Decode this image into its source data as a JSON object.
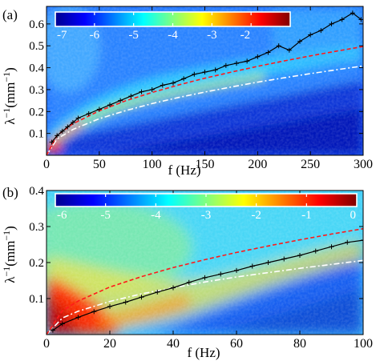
{
  "figure": {
    "panel_a_label": "(a)",
    "panel_b_label": "(b)"
  },
  "chart_data": [
    {
      "type": "heatmap",
      "panel": "(a)",
      "xlabel": "f (Hz)",
      "ylabel": "λ⁻¹(mm⁻¹)",
      "ylabel_main": "λ",
      "ylabel_sup1": "−1",
      "ylabel_mid": "(mm",
      "ylabel_sup2": "−1",
      "ylabel_end": ")",
      "xlim": [
        0,
        300
      ],
      "ylim": [
        0,
        0.68
      ],
      "xticks": [
        0,
        50,
        100,
        150,
        200,
        250,
        300
      ],
      "xtick_labels": [
        "0",
        "50",
        "100",
        "150",
        "200",
        "250",
        "300"
      ],
      "yticks": [
        0.1,
        0.2,
        0.3,
        0.4,
        0.5,
        0.6
      ],
      "ytick_labels": [
        "0.1",
        "0.2",
        "0.3",
        "0.4",
        "0.5",
        "0.6"
      ],
      "colorbar": {
        "range": [
          -7,
          -1
        ],
        "ticks": [
          -7,
          -6,
          -5,
          -4,
          -3,
          -2
        ],
        "tick_labels": [
          "-7",
          "-6",
          "-5",
          "-4",
          "-3",
          "-2"
        ]
      },
      "colormap": "jet",
      "series": [
        {
          "style": "black line with plus markers",
          "x": [
            5,
            10,
            15,
            20,
            25,
            30,
            40,
            50,
            60,
            70,
            80,
            90,
            100,
            110,
            120,
            130,
            140,
            150,
            160,
            170,
            180,
            190,
            200,
            210,
            220,
            230,
            240,
            250,
            260,
            270,
            280,
            290,
            298
          ],
          "y": [
            0.06,
            0.09,
            0.11,
            0.13,
            0.15,
            0.17,
            0.19,
            0.21,
            0.23,
            0.25,
            0.27,
            0.29,
            0.3,
            0.32,
            0.33,
            0.35,
            0.37,
            0.38,
            0.39,
            0.41,
            0.42,
            0.43,
            0.45,
            0.47,
            0.5,
            0.48,
            0.52,
            0.55,
            0.57,
            0.6,
            0.62,
            0.65,
            0.62
          ]
        },
        {
          "style": "red dashed",
          "x": [
            0,
            10,
            25,
            50,
            75,
            100,
            125,
            150,
            175,
            200,
            225,
            250,
            275,
            300
          ],
          "y": [
            0,
            0.091,
            0.144,
            0.203,
            0.249,
            0.287,
            0.321,
            0.352,
            0.38,
            0.406,
            0.431,
            0.454,
            0.476,
            0.497
          ]
        },
        {
          "style": "white dash-dot",
          "x": [
            0,
            10,
            25,
            50,
            75,
            100,
            125,
            150,
            175,
            200,
            225,
            250,
            275,
            300
          ],
          "y": [
            0,
            0.075,
            0.118,
            0.167,
            0.204,
            0.236,
            0.264,
            0.289,
            0.312,
            0.334,
            0.354,
            0.373,
            0.391,
            0.408
          ]
        }
      ]
    },
    {
      "type": "heatmap",
      "panel": "(b)",
      "xlabel": "f (Hz)",
      "ylabel": "λ⁻¹(mm⁻¹)",
      "ylabel_main": "λ",
      "ylabel_sup1": "−1",
      "ylabel_mid": "(mm",
      "ylabel_sup2": "−1",
      "ylabel_end": ")",
      "xlim": [
        0,
        100
      ],
      "ylim": [
        0,
        0.4
      ],
      "xticks": [
        0,
        20,
        40,
        60,
        80,
        100
      ],
      "xtick_labels": [
        "0",
        "20",
        "40",
        "60",
        "80",
        "100"
      ],
      "yticks": [
        0.1,
        0.2,
        0.3,
        0.4
      ],
      "ytick_labels": [
        "0.1",
        "0.2",
        "0.3",
        "0.4"
      ],
      "colorbar": {
        "range": [
          -6,
          0
        ],
        "ticks": [
          -6,
          -5,
          -4,
          -3,
          -2,
          -1,
          0
        ],
        "tick_labels": [
          "-6",
          "-5",
          "-4",
          "-3",
          "-2",
          "-1",
          "0"
        ]
      },
      "colormap": "jet",
      "series": [
        {
          "style": "black line with plus markers",
          "x": [
            2,
            5,
            10,
            15,
            20,
            25,
            30,
            35,
            40,
            45,
            50,
            55,
            60,
            65,
            70,
            75,
            80,
            85,
            90,
            95,
            100
          ],
          "y": [
            0.012,
            0.03,
            0.048,
            0.064,
            0.078,
            0.09,
            0.104,
            0.118,
            0.13,
            0.145,
            0.158,
            0.168,
            0.178,
            0.19,
            0.2,
            0.21,
            0.22,
            0.232,
            0.244,
            0.256,
            0.262
          ]
        },
        {
          "style": "red dashed",
          "x": [
            0,
            5,
            10,
            20,
            30,
            40,
            50,
            60,
            70,
            80,
            90,
            100
          ],
          "y": [
            0,
            0.066,
            0.093,
            0.132,
            0.161,
            0.186,
            0.208,
            0.228,
            0.246,
            0.263,
            0.279,
            0.294
          ]
        },
        {
          "style": "white dash-dot",
          "x": [
            0,
            5,
            10,
            20,
            30,
            40,
            50,
            60,
            70,
            80,
            90,
            100
          ],
          "y": [
            0,
            0.046,
            0.065,
            0.092,
            0.113,
            0.13,
            0.146,
            0.16,
            0.172,
            0.184,
            0.195,
            0.206
          ]
        }
      ]
    }
  ]
}
